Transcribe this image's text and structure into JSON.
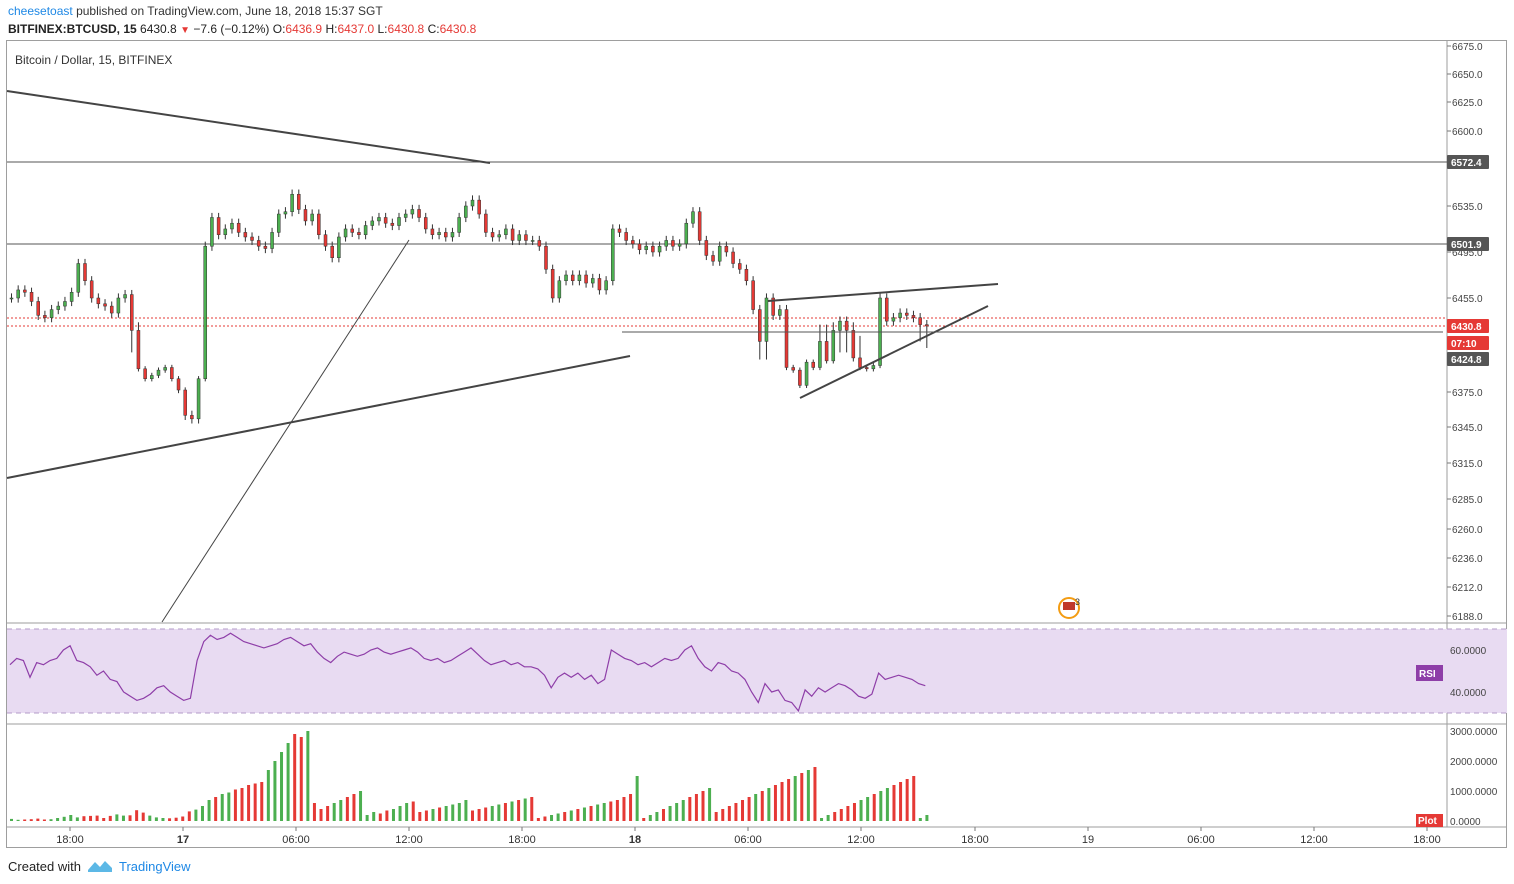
{
  "header": {
    "author": "cheesetoast",
    "published_text": "published on TradingView.com, June 18, 2018 15:37 SGT",
    "symbol": "BITFINEX:BTCUSD, 15",
    "last": "6430.8",
    "change": "−7.6 (−0.12%)",
    "o_label": "O:",
    "o_val": "6436.9",
    "h_label": "H:",
    "h_val": "6437.0",
    "l_label": "L:",
    "l_val": "6430.8",
    "c_label": "C:",
    "c_val": "6430.8"
  },
  "legend": "Bitcoin / Dollar, 15, BITFINEX",
  "footer": {
    "created_with": "Created with",
    "brand": "TradingView"
  },
  "colors": {
    "up": "#4caf50",
    "down": "#e53935",
    "rsi": "#8e3ea8",
    "rsi_band": "#e8dbf2",
    "line": "#444444"
  },
  "chart_data": [
    {
      "type": "candlestick",
      "title": "Bitcoin / Dollar, 15, BITFINEX",
      "price_axis_ticks": [
        6675.0,
        6650.0,
        6625.0,
        6600.0,
        6535.0,
        6495.0,
        6455.0,
        6375.0,
        6345.0,
        6315.0,
        6285.0,
        6260.0,
        6236.0,
        6212.0,
        6188.0
      ],
      "price_tick_labels": [
        "6675.0",
        "6650.0",
        "6625.0",
        "6600.0",
        "6535.0",
        "6495.0",
        "6455.0",
        "6375.0",
        "6345.0",
        "6315.0",
        "6285.0",
        "6260.0",
        "6236.0",
        "6212.0",
        "6188.0"
      ],
      "time_ticks": [
        "18:00",
        "17",
        "06:00",
        "12:00",
        "18:00",
        "18",
        "06:00",
        "12:00",
        "18:00",
        "19",
        "06:00",
        "12:00",
        "18:00"
      ],
      "time_tick_bold": [
        false,
        true,
        false,
        false,
        false,
        true,
        false,
        false,
        false,
        false,
        false,
        false,
        false
      ],
      "price_labels": [
        {
          "text": "6572.4",
          "value": 6572.4,
          "color": "#555555"
        },
        {
          "text": "6501.9",
          "value": 6501.9,
          "color": "#555555"
        },
        {
          "text": "6430.8",
          "value": 6430.8,
          "color": "#e53935"
        },
        {
          "text": "07:10",
          "value": 6416.5,
          "color": "#e53935"
        },
        {
          "text": "6424.8",
          "value": 6424.8,
          "color": "#555555"
        }
      ],
      "closes": [
        6455,
        6462,
        6460,
        6452,
        6440,
        6438,
        6445,
        6448,
        6452,
        6460,
        6485,
        6470,
        6455,
        6450,
        6448,
        6442,
        6455,
        6458,
        6430,
        6410,
        6395,
        6400,
        6408,
        6412,
        6395,
        6378,
        6355,
        6352,
        6395,
        6500,
        6525,
        6510,
        6515,
        6520,
        6512,
        6508,
        6505,
        6500,
        6498,
        6512,
        6528,
        6530,
        6545,
        6532,
        6522,
        6528,
        6510,
        6500,
        6490,
        6508,
        6515,
        6512,
        6510,
        6518,
        6522,
        6525,
        6520,
        6518,
        6525,
        6528,
        6532,
        6525,
        6515,
        6510,
        6512,
        6508,
        6512,
        6525,
        6535,
        6540,
        6528,
        6512,
        6508,
        6510,
        6515,
        6505,
        6510,
        6505,
        6505,
        6500,
        6480,
        6455,
        6470,
        6475,
        6470,
        6475,
        6468,
        6472,
        6462,
        6470,
        6515,
        6512,
        6505,
        6502,
        6497,
        6500,
        6495,
        6500,
        6505,
        6500,
        6502,
        6520,
        6530,
        6505,
        6492,
        6487,
        6500,
        6495,
        6485,
        6480,
        6470,
        6445,
        6428,
        6455,
        6440,
        6445,
        6412,
        6408,
        6385,
        6420,
        6412,
        6428,
        6422,
        6430,
        6435,
        6430,
        6425,
        6412,
        6410,
        6415,
        6455,
        6435,
        6438,
        6442,
        6440,
        6438,
        6432,
        6430.8
      ],
      "volumes": [
        70,
        40,
        50,
        60,
        80,
        50,
        60,
        100,
        140,
        200,
        120,
        160,
        170,
        180,
        100,
        170,
        220,
        180,
        190,
        360,
        280,
        180,
        120,
        100,
        90,
        110,
        150,
        320,
        380,
        500,
        700,
        800,
        900,
        950,
        1050,
        1100,
        1200,
        1250,
        1300,
        1700,
        2000,
        2300,
        2600,
        2900,
        2800,
        3000,
        600,
        400,
        500,
        600,
        700,
        800,
        900,
        1000,
        200,
        300,
        250,
        350,
        400,
        500,
        600,
        650,
        300,
        350,
        400,
        450,
        500,
        550,
        600,
        700,
        350,
        400,
        450,
        500,
        550,
        600,
        650,
        700,
        750,
        800,
        100,
        150,
        200,
        250,
        300,
        350,
        400,
        450,
        500,
        550,
        600,
        650,
        700,
        800,
        900,
        1500,
        100,
        200,
        300,
        400,
        500,
        600,
        700,
        800,
        900,
        1000,
        1100,
        300,
        400,
        500,
        600,
        700,
        800,
        900,
        1000,
        1100,
        1200,
        1300,
        1400,
        1500,
        1600,
        1700,
        1800,
        100,
        200,
        300,
        400,
        500,
        600,
        700,
        800,
        900,
        1000,
        1100,
        1200,
        1300,
        1400,
        1500,
        100,
        200
      ],
      "trendlines": [
        {
          "from": [
            "start",
            6645
          ],
          "to": [
            "17 ~14:30",
            6576
          ]
        },
        {
          "from": [
            "start",
            6310
          ],
          "to": [
            "18 ~00:00",
            6418
          ]
        },
        {
          "from": [
            "16 ~20:30",
            6174
          ],
          "to": [
            "17 ~12:00",
            6510
          ]
        },
        {
          "from": [
            "18 ~06:00",
            6454
          ],
          "to": [
            "18 ~18:00",
            6470
          ]
        },
        {
          "from": [
            "18 ~08:00",
            6375
          ],
          "to": [
            "18 ~18:00",
            6450
          ]
        },
        {
          "from": [
            "18 ~00:00",
            6420
          ],
          "to": [
            "end",
            6420
          ]
        }
      ],
      "event_badge": "3"
    },
    {
      "type": "line",
      "series": [
        {
          "name": "RSI",
          "values": [
            53,
            56,
            55,
            47,
            54,
            53,
            55,
            56,
            60,
            62,
            55,
            54,
            52,
            48,
            50,
            46,
            45,
            40,
            38,
            36,
            37,
            39,
            42,
            43,
            40,
            38,
            36,
            37,
            55,
            64,
            67,
            65,
            66,
            68,
            66,
            64,
            63,
            62,
            61,
            62,
            63,
            65,
            66,
            64,
            62,
            63,
            59,
            56,
            54,
            57,
            59,
            58,
            57,
            58,
            60,
            61,
            59,
            58,
            59,
            60,
            61,
            59,
            56,
            55,
            56,
            54,
            55,
            57,
            59,
            61,
            58,
            55,
            53,
            54,
            55,
            53,
            54,
            52,
            52,
            51,
            48,
            42,
            47,
            49,
            47,
            49,
            46,
            48,
            44,
            46,
            60,
            58,
            56,
            55,
            53,
            54,
            52,
            54,
            56,
            55,
            56,
            60,
            62,
            56,
            52,
            50,
            54,
            53,
            50,
            49,
            46,
            40,
            35,
            44,
            40,
            41,
            36,
            35,
            31,
            41,
            38,
            42,
            40,
            42,
            44,
            43,
            41,
            38,
            37,
            39,
            49,
            46,
            47,
            48,
            47,
            46,
            44,
            43
          ]
        }
      ],
      "axis_ticks": [
        60.0,
        40.0
      ],
      "axis_tick_labels": [
        "60.0000",
        "40.0000"
      ],
      "label": "RSI"
    },
    {
      "type": "bar",
      "series": [
        {
          "name": "Plot"
        }
      ],
      "axis_ticks": [
        3000.0,
        2000.0,
        1000.0,
        0.0
      ],
      "axis_tick_labels": [
        "3000.0000",
        "2000.0000",
        "1000.0000",
        "0.0000"
      ],
      "label": "Plot"
    }
  ]
}
